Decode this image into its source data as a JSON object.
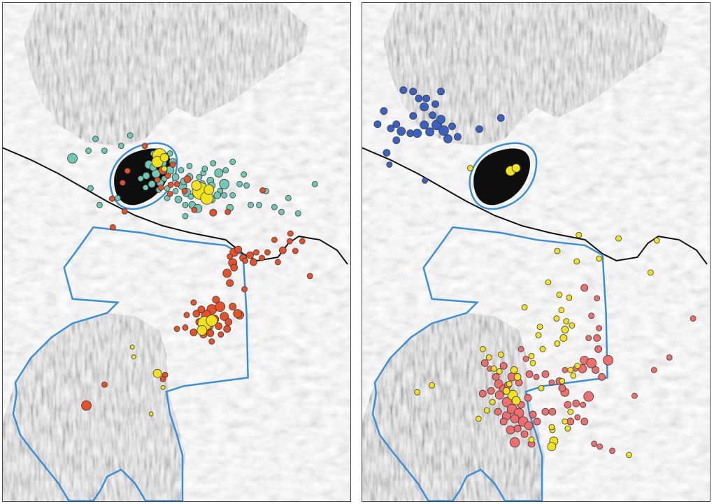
{
  "figure": {
    "panels": [
      {
        "id": "left",
        "point_layers": [
          {
            "color_name": "teal",
            "color": "#6ec8b4",
            "count": 72
          },
          {
            "color_name": "orange-red",
            "color": "#e8502a",
            "count": 62
          },
          {
            "color_name": "yellow",
            "color": "#f2e21b",
            "count": 16
          }
        ],
        "lines": [
          "boundary-outline",
          "road"
        ]
      },
      {
        "id": "right",
        "point_layers": [
          {
            "color_name": "blue",
            "color": "#3a62c4",
            "count": 30
          },
          {
            "color_name": "salmon",
            "color": "#ee6e6e",
            "count": 98
          },
          {
            "color_name": "yellow",
            "color": "#f2e21b",
            "count": 56
          }
        ],
        "lines": [
          "boundary-outline",
          "road"
        ]
      }
    ],
    "colors": {
      "boundary": "#3a8fd8",
      "road": "#111111",
      "water": "#0e0e0e",
      "marker_outline": "#3a3a3a"
    }
  }
}
